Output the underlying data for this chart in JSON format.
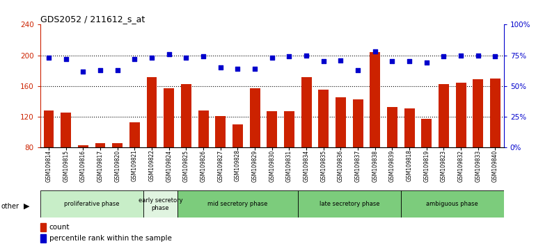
{
  "title": "GDS2052 / 211612_s_at",
  "samples": [
    "GSM109814",
    "GSM109815",
    "GSM109816",
    "GSM109817",
    "GSM109820",
    "GSM109821",
    "GSM109822",
    "GSM109824",
    "GSM109825",
    "GSM109826",
    "GSM109827",
    "GSM109828",
    "GSM109829",
    "GSM109830",
    "GSM109831",
    "GSM109834",
    "GSM109835",
    "GSM109836",
    "GSM109837",
    "GSM109838",
    "GSM109839",
    "GSM109818",
    "GSM109819",
    "GSM109823",
    "GSM109832",
    "GSM109833",
    "GSM109840"
  ],
  "counts": [
    128,
    126,
    83,
    86,
    86,
    113,
    172,
    157,
    163,
    128,
    121,
    110,
    157,
    127,
    127,
    172,
    155,
    145,
    143,
    204,
    133,
    131,
    117,
    163,
    164,
    169,
    170
  ],
  "percentile": [
    73,
    72,
    62,
    63,
    63,
    72,
    73,
    76,
    73,
    74,
    65,
    64,
    64,
    73,
    74,
    75,
    70,
    71,
    63,
    78,
    70,
    70,
    69,
    74,
    75,
    75,
    74
  ],
  "phases": [
    {
      "label": "proliferative phase",
      "start": 0,
      "end": 6,
      "color": "#c8eec8"
    },
    {
      "label": "early secretory\nphase",
      "start": 6,
      "end": 8,
      "color": "#e0f4e0"
    },
    {
      "label": "mid secretory phase",
      "start": 8,
      "end": 15,
      "color": "#7ccc7c"
    },
    {
      "label": "late secretory phase",
      "start": 15,
      "end": 21,
      "color": "#7ccc7c"
    },
    {
      "label": "ambiguous phase",
      "start": 21,
      "end": 27,
      "color": "#7ccc7c"
    }
  ],
  "ylim_left": [
    80,
    240
  ],
  "ylim_right": [
    0,
    100
  ],
  "yticks_left": [
    80,
    120,
    160,
    200,
    240
  ],
  "yticks_right": [
    0,
    25,
    50,
    75,
    100
  ],
  "bar_color": "#cc2200",
  "dot_color": "#0000cc",
  "title_color": "#000000",
  "left_tick_color": "#cc2200",
  "right_tick_color": "#0000cc"
}
